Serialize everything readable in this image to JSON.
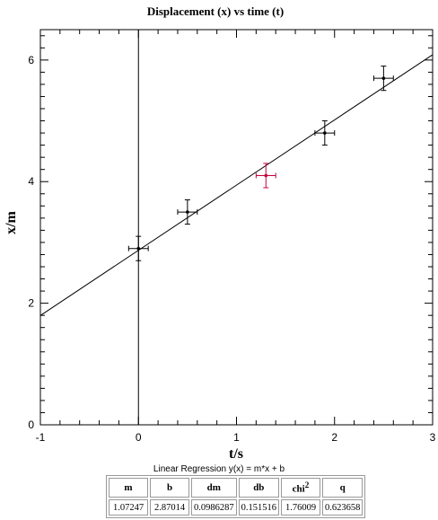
{
  "chart_data": {
    "type": "scatter",
    "title": "Displacement (x) vs time (t)",
    "xlabel": "t/s",
    "ylabel": "x/m",
    "xlim": [
      -1,
      3
    ],
    "ylim": [
      0,
      6.5
    ],
    "x_ticks": [
      -1,
      0,
      1,
      2,
      3
    ],
    "y_ticks": [
      0,
      2,
      4,
      6
    ],
    "points": [
      {
        "x": 0.0,
        "y": 2.9,
        "xerr": 0.1,
        "yerr": 0.2,
        "color": "#000000"
      },
      {
        "x": 0.5,
        "y": 3.5,
        "xerr": 0.1,
        "yerr": 0.2,
        "color": "#000000"
      },
      {
        "x": 1.3,
        "y": 4.1,
        "xerr": 0.1,
        "yerr": 0.2,
        "color": "#c8003c"
      },
      {
        "x": 1.9,
        "y": 4.8,
        "xerr": 0.1,
        "yerr": 0.2,
        "color": "#000000"
      },
      {
        "x": 2.5,
        "y": 5.7,
        "xerr": 0.1,
        "yerr": 0.2,
        "color": "#000000"
      }
    ],
    "fit": {
      "slope": 1.07247,
      "intercept": 2.87014
    }
  },
  "regression": {
    "caption": "Linear Regression y(x) = m*x + b",
    "headers": [
      "m",
      "b",
      "dm",
      "db",
      "chi",
      "q"
    ],
    "chi_sup": "2",
    "values": [
      "1.07247",
      "2.87014",
      "0.0986287",
      "0.151516",
      "1.76009",
      "0.623658"
    ]
  }
}
